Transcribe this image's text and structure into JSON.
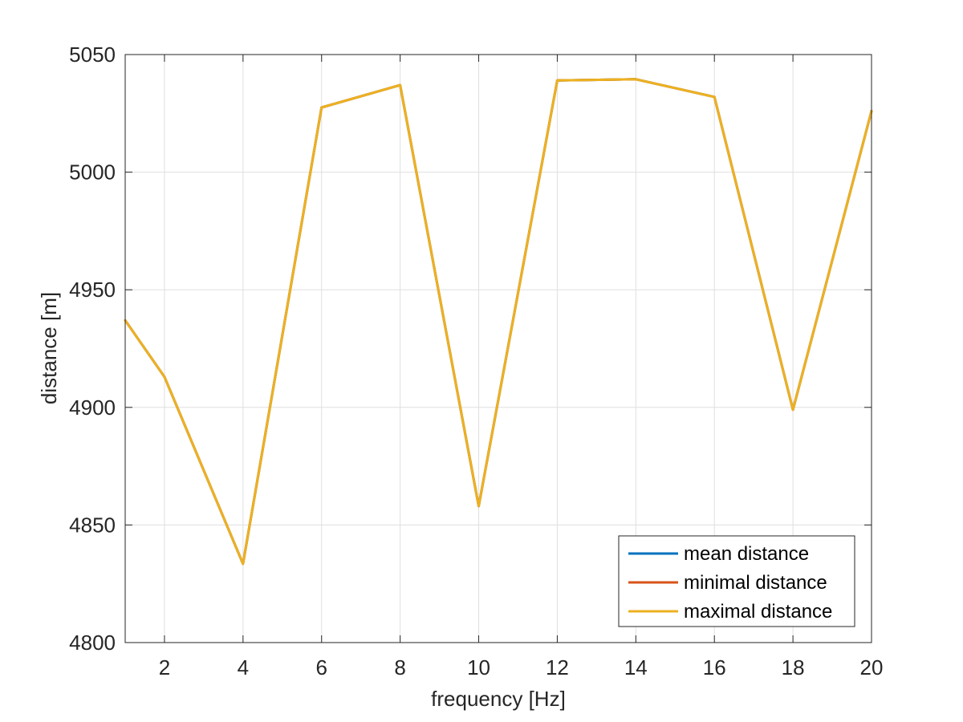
{
  "chart_data": {
    "type": "line",
    "xlabel": "frequency [Hz]",
    "ylabel": "distance [m]",
    "xlim": [
      1,
      20
    ],
    "ylim": [
      4800,
      5050
    ],
    "xticks": [
      2,
      4,
      6,
      8,
      10,
      12,
      14,
      16,
      18,
      20
    ],
    "yticks": [
      4800,
      4850,
      4900,
      4950,
      5000,
      5050
    ],
    "grid": true,
    "legend_position": "bottom-right",
    "x": [
      1,
      2,
      4,
      6,
      8,
      10,
      12,
      14,
      16,
      18,
      20
    ],
    "series": [
      {
        "name": "mean distance",
        "color": "#0072BD",
        "values": [
          4937,
          4913,
          4833.5,
          5027.5,
          5037,
          4858,
          5039,
          5039.5,
          5032,
          4899,
          5026
        ]
      },
      {
        "name": "minimal distance",
        "color": "#D95319",
        "values": [
          4937,
          4913,
          4833.5,
          5027.5,
          5037,
          4858,
          5039,
          5039.5,
          5032,
          4899,
          5026
        ]
      },
      {
        "name": "maximal distance",
        "color": "#EDB120",
        "values": [
          4937,
          4913,
          4833.5,
          5027.5,
          5037,
          4858,
          5039,
          5039.5,
          5032,
          4899,
          5026
        ]
      }
    ]
  }
}
